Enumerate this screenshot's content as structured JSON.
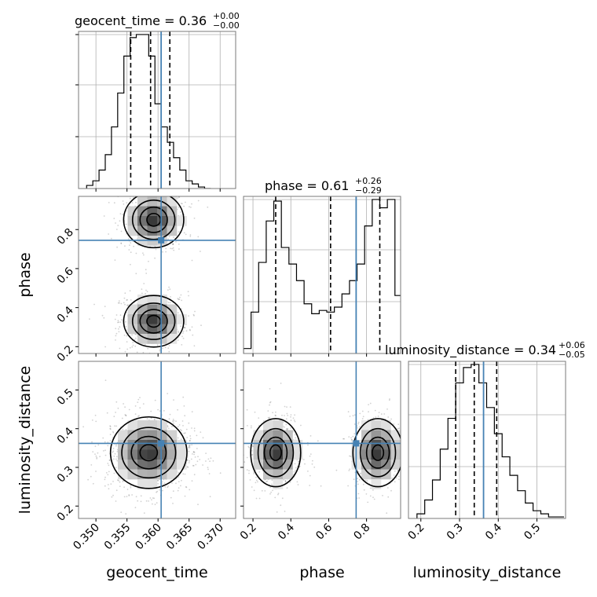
{
  "chart_data": {
    "type": "corner",
    "parameters": [
      "geocent_time",
      "phase",
      "luminosity_distance"
    ],
    "truth_color": "#4682b4",
    "diagonal": [
      {
        "parameter": "geocent_time",
        "title_text": "geocent_time = 0.36",
        "title_upper": "+0.00",
        "title_lower": "−0.00",
        "xlim": [
          0.3472,
          0.3725
        ],
        "bin_edges": [
          0.3485,
          0.3495,
          0.3505,
          0.3515,
          0.3525,
          0.3535,
          0.3545,
          0.3555,
          0.3565,
          0.3575,
          0.3585,
          0.3595,
          0.3605,
          0.3615,
          0.3625,
          0.3635,
          0.3645,
          0.3655,
          0.3665,
          0.3675,
          0.3685
        ],
        "counts": [
          2,
          5,
          12,
          22,
          40,
          62,
          86,
          98,
          100,
          100,
          86,
          55,
          40,
          30,
          20,
          12,
          5,
          3,
          1,
          0
        ],
        "quantiles": [
          0.3556,
          0.3588,
          0.3619
        ],
        "truth": 0.3605
      },
      {
        "parameter": "phase",
        "title_text": "phase = 0.61",
        "title_upper": "+0.26",
        "title_lower": "−0.29",
        "xlim": [
          0.15,
          0.98
        ],
        "bin_edges": [
          0.15,
          0.19,
          0.23,
          0.27,
          0.31,
          0.35,
          0.39,
          0.43,
          0.47,
          0.51,
          0.55,
          0.59,
          0.63,
          0.67,
          0.71,
          0.75,
          0.79,
          0.83,
          0.87,
          0.91,
          0.95,
          0.98
        ],
        "counts": [
          3,
          25,
          55,
          80,
          92,
          64,
          54,
          44,
          30,
          24,
          26,
          25,
          28,
          36,
          44,
          54,
          77,
          93,
          88,
          93,
          35
        ],
        "quantiles": [
          0.32,
          0.61,
          0.87
        ],
        "truth": 0.745
      },
      {
        "parameter": "luminosity_distance",
        "title_text": "luminosity_distance = 0.34",
        "title_upper": "+0.06",
        "title_lower": "−0.05",
        "xlim": [
          0.168,
          0.574
        ],
        "bin_edges": [
          0.19,
          0.21,
          0.23,
          0.25,
          0.27,
          0.29,
          0.31,
          0.33,
          0.35,
          0.37,
          0.39,
          0.41,
          0.43,
          0.45,
          0.47,
          0.49,
          0.51,
          0.53,
          0.55,
          0.57
        ],
        "counts": [
          3,
          12,
          25,
          45,
          65,
          88,
          98,
          100,
          88,
          72,
          55,
          40,
          28,
          18,
          10,
          5,
          3,
          1,
          1
        ],
        "quantiles": [
          0.29,
          0.338,
          0.396
        ],
        "truth": 0.362
      }
    ],
    "panels_2d": [
      {
        "x": "geocent_time",
        "y": "phase",
        "xlim": [
          0.3472,
          0.3725
        ],
        "ylim": [
          0.165,
          0.97
        ],
        "truth": [
          0.3605,
          0.745
        ],
        "modes": [
          {
            "x": 0.3593,
            "y": 0.85,
            "sx": 0.0022,
            "sy": 0.065,
            "w": 1.0
          },
          {
            "x": 0.3593,
            "y": 0.33,
            "sx": 0.0022,
            "sy": 0.06,
            "w": 1.0
          }
        ]
      },
      {
        "x": "geocent_time",
        "y": "luminosity_distance",
        "xlim": [
          0.3472,
          0.3725
        ],
        "ylim": [
          0.168,
          0.574
        ],
        "truth": [
          0.3605,
          0.362
        ],
        "modes": [
          {
            "x": 0.3585,
            "y": 0.338,
            "sx": 0.0028,
            "sy": 0.042,
            "w": 1.0
          }
        ]
      },
      {
        "x": "phase",
        "y": "luminosity_distance",
        "xlim": [
          0.15,
          0.98
        ],
        "ylim": [
          0.168,
          0.574
        ],
        "truth": [
          0.745,
          0.362
        ],
        "modes": [
          {
            "x": 0.32,
            "y": 0.338,
            "sx": 0.06,
            "sy": 0.04,
            "w": 1.0
          },
          {
            "x": 0.86,
            "y": 0.338,
            "sx": 0.06,
            "sy": 0.04,
            "w": 1.0
          }
        ]
      }
    ],
    "ticks": {
      "geocent_time": [
        "0.350",
        "0.355",
        "0.360",
        "0.365",
        "0.370"
      ],
      "phase_x": [
        "0.2",
        "0.4",
        "0.6",
        "0.8"
      ],
      "phase_y": [
        "0.2",
        "0.4",
        "0.6",
        "0.8"
      ],
      "luminosity_distance_x": [
        "0.2",
        "0.3",
        "0.4",
        "0.5"
      ],
      "luminosity_distance_y": [
        "0.2",
        "0.3",
        "0.4",
        "0.5"
      ]
    },
    "axis_labels": {
      "x_left": "geocent_time",
      "x_mid": "phase",
      "x_right": "luminosity_distance",
      "y_mid": "phase",
      "y_bottom": "luminosity_distance"
    },
    "grid": true
  }
}
